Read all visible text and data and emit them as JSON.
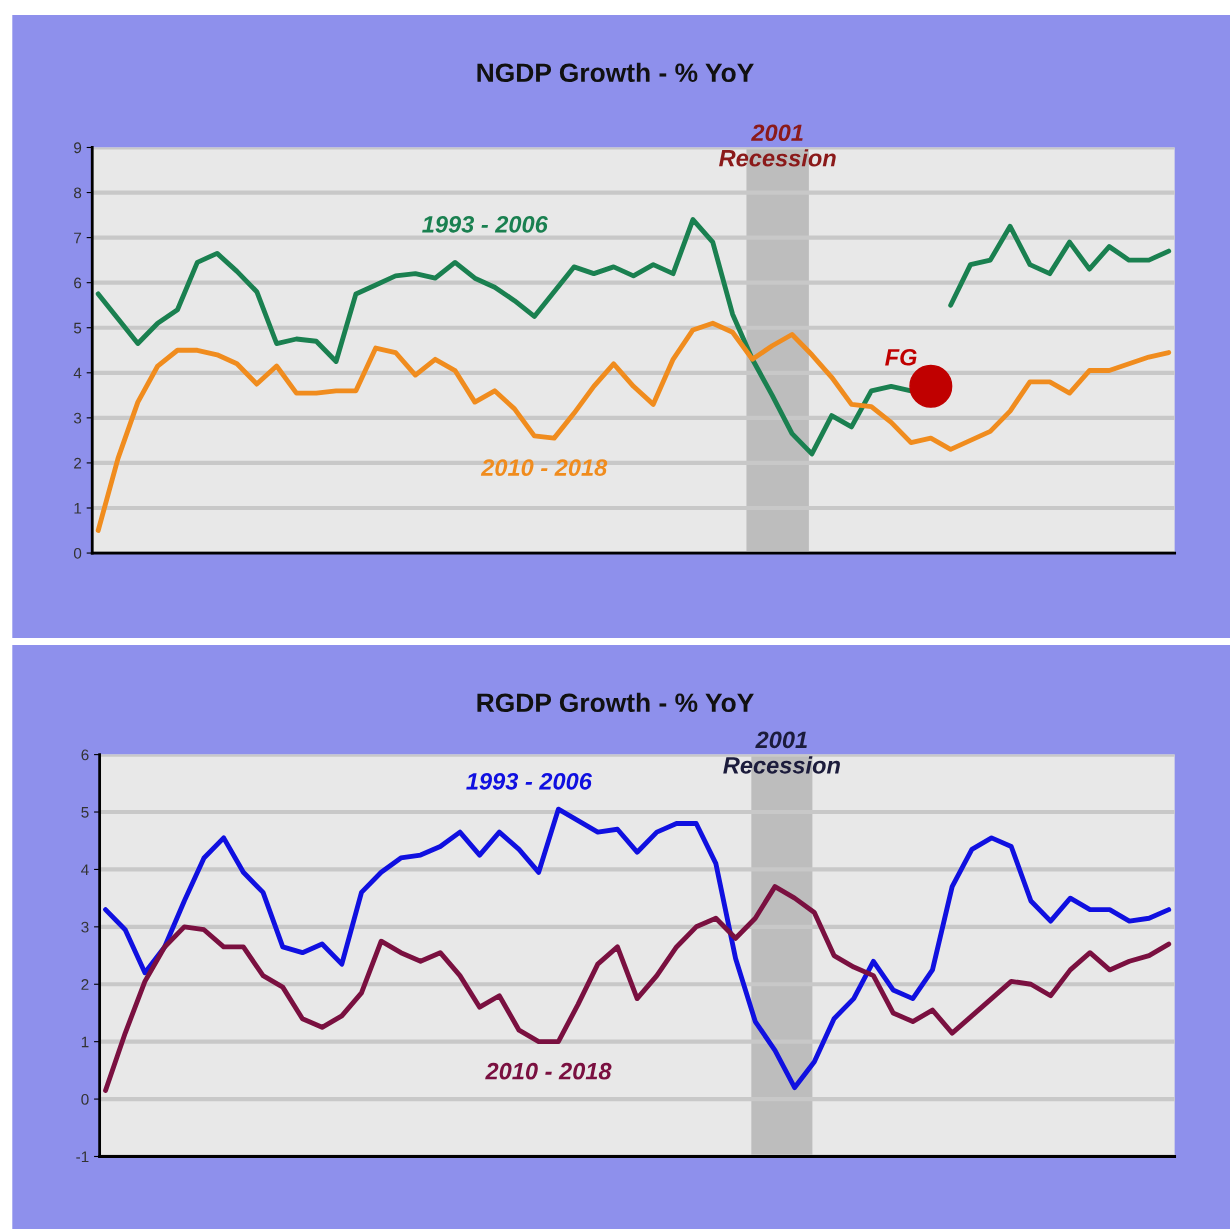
{
  "chart_data": [
    {
      "type": "line",
      "title": "NGDP Growth - % YoY",
      "categories": [
        null,
        null,
        null,
        null,
        null,
        null,
        null,
        null,
        null,
        null,
        null,
        null,
        null,
        null,
        null,
        null,
        null,
        null,
        null,
        null,
        null,
        null,
        null,
        null,
        null,
        null,
        null,
        null,
        null,
        null,
        null,
        null,
        null,
        null,
        null,
        null,
        null,
        null,
        null,
        null,
        null,
        null,
        null,
        null,
        null,
        null,
        null,
        null,
        null,
        null,
        null,
        null,
        null,
        null,
        null
      ],
      "series": [
        {
          "name": "1993 - 2006",
          "color": "#1a8050",
          "values": [
            5.75,
            5.2,
            4.65,
            5.1,
            5.4,
            6.45,
            6.65,
            6.25,
            5.8,
            4.65,
            4.75,
            4.7,
            4.25,
            5.75,
            5.95,
            6.15,
            6.2,
            6.1,
            6.45,
            6.1,
            5.9,
            5.6,
            5.25,
            5.8,
            6.35,
            6.2,
            6.35,
            6.15,
            6.4,
            6.2,
            7.4,
            6.9,
            5.3,
            4.3,
            3.5,
            2.65,
            2.2,
            3.05,
            2.8,
            3.6,
            3.7,
            3.6,
            null,
            5.5,
            6.4,
            6.5,
            7.25,
            6.4,
            6.2,
            6.9,
            6.3,
            6.8,
            6.5,
            6.5,
            6.7
          ]
        },
        {
          "name": "2010 - 2018",
          "color": "#f08c1e",
          "values": [
            0.5,
            2.1,
            3.35,
            4.15,
            4.5,
            4.5,
            4.4,
            4.2,
            3.75,
            4.15,
            3.55,
            3.55,
            3.6,
            3.6,
            4.55,
            4.45,
            3.95,
            4.3,
            4.05,
            3.35,
            3.6,
            3.2,
            2.6,
            2.55,
            3.1,
            3.7,
            4.2,
            3.7,
            3.3,
            4.3,
            4.95,
            5.1,
            4.9,
            4.3,
            4.6,
            4.85,
            4.4,
            3.9,
            3.3,
            3.25,
            2.9,
            2.45,
            2.55,
            2.3,
            2.5,
            2.7,
            3.15,
            3.8,
            3.8,
            3.55,
            4.05,
            4.05,
            4.2,
            4.35,
            4.45
          ]
        },
        {
          "name": "FG",
          "type": "scatter",
          "color": "#c00000",
          "values": [
            null,
            null,
            null,
            null,
            null,
            null,
            null,
            null,
            null,
            null,
            null,
            null,
            null,
            null,
            null,
            null,
            null,
            null,
            null,
            null,
            null,
            null,
            null,
            null,
            null,
            null,
            null,
            null,
            null,
            null,
            null,
            null,
            null,
            null,
            null,
            null,
            null,
            null,
            null,
            null,
            null,
            null,
            3.7,
            null,
            null,
            null,
            null,
            null,
            null,
            null,
            null,
            null,
            null,
            null,
            null
          ]
        }
      ],
      "ylim": [
        0,
        9
      ],
      "yticks": [
        0,
        1,
        2,
        3,
        4,
        5,
        6,
        7,
        8,
        9
      ],
      "grid": "y",
      "legend": false,
      "tick_labels": "y",
      "annotations": [
        "2001\nRecession"
      ]
    },
    {
      "type": "line",
      "title": "RGDP Growth - % YoY",
      "categories": [
        null,
        null,
        null,
        null,
        null,
        null,
        null,
        null,
        null,
        null,
        null,
        null,
        null,
        null,
        null,
        null,
        null,
        null,
        null,
        null,
        null,
        null,
        null,
        null,
        null,
        null,
        null,
        null,
        null,
        null,
        null,
        null,
        null,
        null,
        null,
        null,
        null,
        null,
        null,
        null,
        null,
        null,
        null,
        null,
        null,
        null,
        null,
        null,
        null,
        null,
        null,
        null,
        null,
        null,
        null
      ],
      "series": [
        {
          "name": "1993 - 2006",
          "color": "#1010e0",
          "values": [
            3.3,
            2.95,
            2.2,
            2.65,
            3.45,
            4.2,
            4.55,
            3.95,
            3.6,
            2.65,
            2.55,
            2.7,
            2.35,
            3.6,
            3.95,
            4.2,
            4.25,
            4.4,
            4.65,
            4.25,
            4.65,
            4.35,
            3.95,
            5.05,
            4.85,
            4.65,
            4.7,
            4.3,
            4.65,
            4.8,
            4.8,
            4.1,
            2.45,
            1.35,
            0.85,
            0.2,
            0.65,
            1.4,
            1.75,
            2.4,
            1.9,
            1.75,
            2.25,
            3.7,
            4.35,
            4.55,
            4.4,
            3.45,
            3.1,
            3.5,
            3.3,
            3.3,
            3.1,
            3.15,
            3.3
          ]
        },
        {
          "name": "2010 - 2018",
          "color": "#7a1040",
          "values": [
            0.15,
            1.15,
            2.05,
            2.65,
            3.0,
            2.95,
            2.65,
            2.65,
            2.15,
            1.95,
            1.4,
            1.25,
            1.45,
            1.85,
            2.75,
            2.55,
            2.4,
            2.55,
            2.15,
            1.6,
            1.8,
            1.2,
            1.0,
            1.0,
            1.65,
            2.35,
            2.65,
            1.75,
            2.15,
            2.65,
            3.0,
            3.15,
            2.8,
            3.15,
            3.7,
            3.5,
            3.25,
            2.5,
            2.3,
            2.15,
            1.5,
            1.35,
            1.55,
            1.15,
            1.45,
            1.75,
            2.05,
            2.0,
            1.8,
            2.25,
            2.55,
            2.25,
            2.4,
            2.5,
            2.7
          ]
        }
      ],
      "ylim": [
        -1,
        6
      ],
      "yticks": [
        -1,
        0,
        1,
        2,
        3,
        4,
        5,
        6
      ],
      "grid": "y",
      "legend": false,
      "tick_labels": "y",
      "annotations": [
        "2001\nRecession"
      ]
    }
  ]
}
